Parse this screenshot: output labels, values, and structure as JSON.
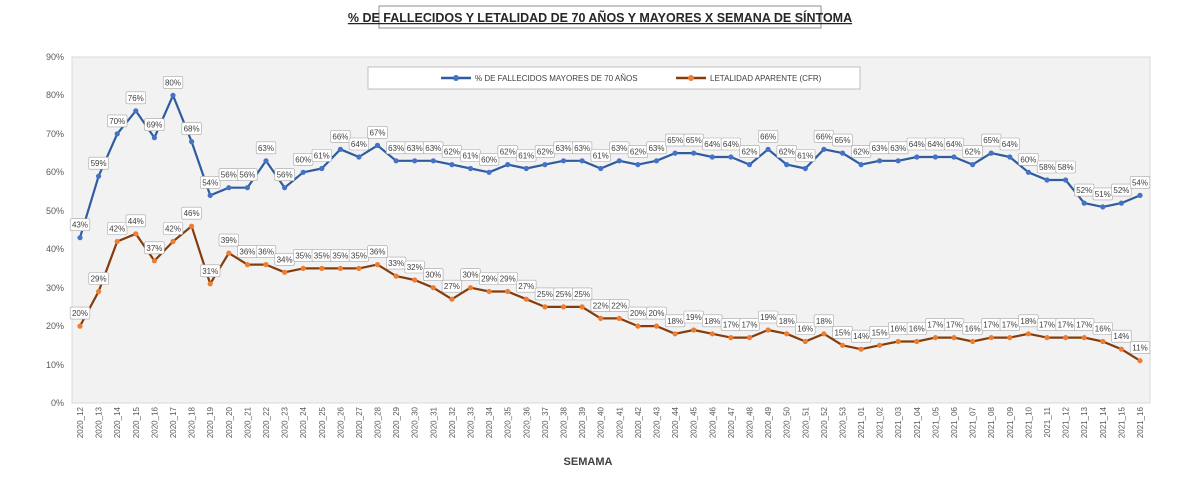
{
  "chart_data": {
    "type": "line",
    "title": "% DE FALLECIDOS Y LETALIDAD DE 70 AÑOS Y MAYORES X SEMANA DE SÍNTOMA",
    "xlabel": "SEMAMA",
    "ylabel": "",
    "ylim": [
      0,
      90
    ],
    "yticks": [
      "0%",
      "10%",
      "20%",
      "30%",
      "40%",
      "50%",
      "60%",
      "70%",
      "80%",
      "90%"
    ],
    "legend_position": "top-center",
    "grid": false,
    "categories": [
      "2020_12",
      "2020_13",
      "2020_14",
      "2020_15",
      "2020_16",
      "2020_17",
      "2020_18",
      "2020_19",
      "2020_20",
      "2020_21",
      "2020_22",
      "2020_23",
      "2020_24",
      "2020_25",
      "2020_26",
      "2020_27",
      "2020_28",
      "2020_29",
      "2020_30",
      "2020_31",
      "2020_32",
      "2020_33",
      "2020_34",
      "2020_35",
      "2020_36",
      "2020_37",
      "2020_38",
      "2020_39",
      "2020_40",
      "2020_41",
      "2020_42",
      "2020_43",
      "2020_44",
      "2020_45",
      "2020_46",
      "2020_47",
      "2020_48",
      "2020_49",
      "2020_50",
      "2020_51",
      "2020_52",
      "2020_53",
      "2021_01",
      "2021_02",
      "2021_03",
      "2021_04",
      "2021_05",
      "2021_06",
      "2021_07",
      "2021_08",
      "2021_09",
      "2021_10",
      "2021_11",
      "2021_12",
      "2021_13",
      "2021_14",
      "2021_15",
      "2021_16"
    ],
    "series": [
      {
        "name": "% DE FALLECIDOS MAYORES DE 70 AÑOS",
        "color": "#2e5c9e",
        "marker_color": "#4472c4",
        "values": [
          43,
          59,
          70,
          76,
          69,
          80,
          68,
          54,
          56,
          56,
          63,
          56,
          60,
          61,
          66,
          64,
          67,
          63,
          63,
          63,
          62,
          61,
          60,
          62,
          61,
          62,
          63,
          63,
          61,
          63,
          62,
          63,
          65,
          65,
          64,
          64,
          62,
          66,
          62,
          61,
          66,
          65,
          62,
          63,
          63,
          64,
          64,
          64,
          62,
          65,
          64,
          60,
          58,
          58,
          52,
          51,
          52,
          54
        ]
      },
      {
        "name": "LETALIDAD APARENTE (CFR)",
        "color": "#833c0b",
        "marker_color": "#ed7d31",
        "values": [
          20,
          29,
          42,
          44,
          37,
          42,
          46,
          31,
          39,
          36,
          36,
          34,
          35,
          35,
          35,
          35,
          36,
          33,
          32,
          30,
          27,
          30,
          29,
          29,
          27,
          25,
          25,
          25,
          22,
          22,
          20,
          20,
          18,
          19,
          18,
          17,
          17,
          19,
          18,
          16,
          18,
          15,
          14,
          15,
          16,
          16,
          17,
          17,
          16,
          17,
          17,
          18,
          17,
          17,
          17,
          16,
          14,
          11
        ]
      }
    ]
  }
}
